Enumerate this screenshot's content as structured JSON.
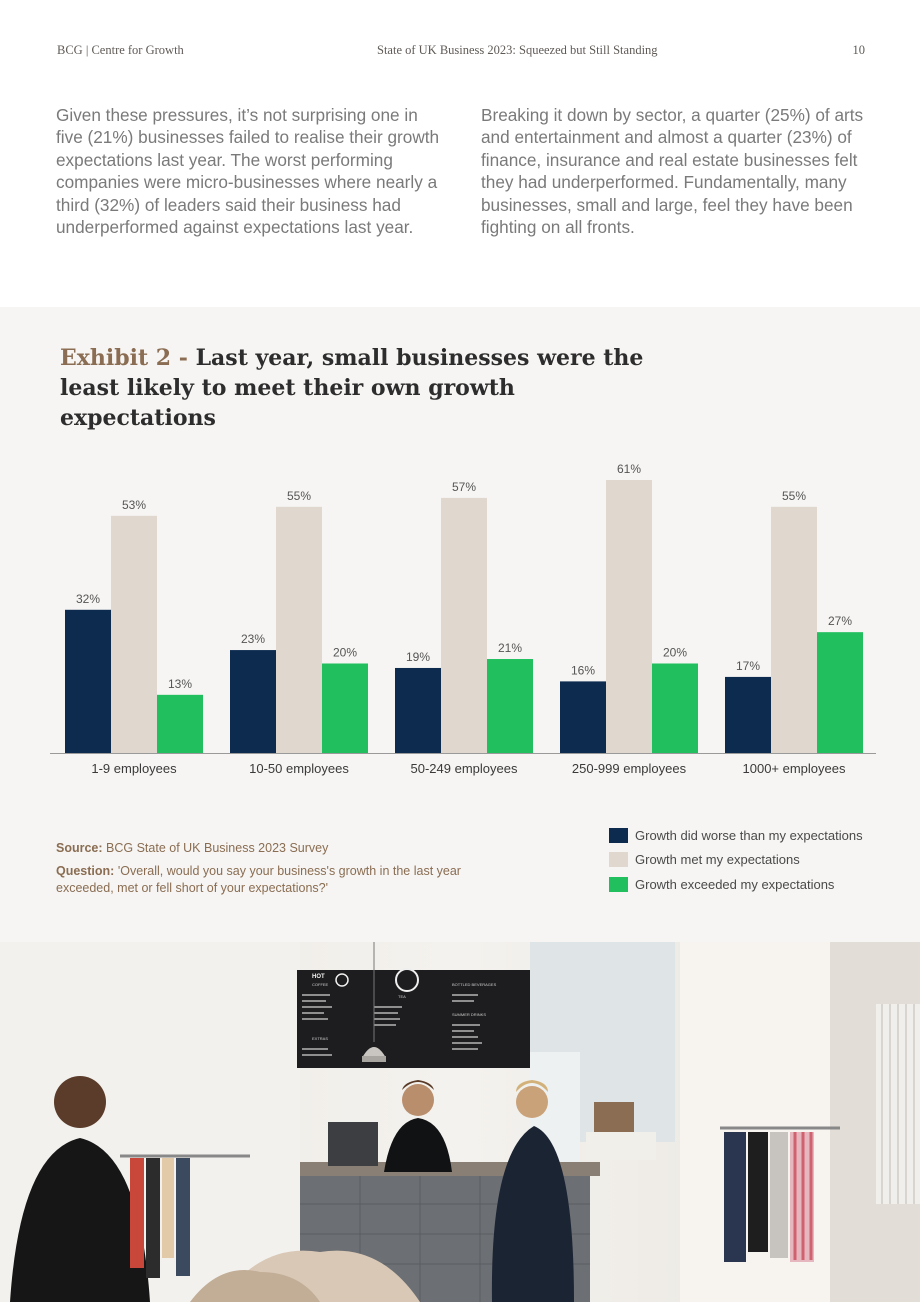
{
  "header": {
    "left": "BCG | Centre for Growth",
    "center": "State of UK Business 2023: Squeezed but Still Standing",
    "page": "10"
  },
  "intro": {
    "col1": "Given these pressures, it’s not surprising one in five (21%) businesses failed to realise their growth expectations last year. The worst performing companies were micro-businesses where nearly a third (32%) of leaders said their business had underperformed against expectations last year.",
    "col2": "Breaking it down by sector, a quarter (25%) of arts and entertainment and almost a quarter (23%) of finance, insurance and real estate businesses felt they had underperformed. Fundamentally, many businesses, small and large, feel they have been fighting on all fronts."
  },
  "exhibit": {
    "number": "Exhibit 2 -",
    "title": "Last year, small businesses were the least likely to meet their own growth expectations"
  },
  "source": {
    "source_label": "Source:",
    "source_text": "BCG State of UK Business 2023 Survey",
    "question_label": "Question:",
    "question_text": "'Overall, would you say your business's growth in the last year exceeded, met or fell short of your expectations?'"
  },
  "colors": {
    "worse": "#0d2b4f",
    "met": "#e0d7ce",
    "exceeded": "#22bf5f",
    "accent": "#8a6d52",
    "panel": "#f6f5f3"
  },
  "chart_data": {
    "type": "bar",
    "categories": [
      "1-9 employees",
      "10-50 employees",
      "50-249 employees",
      "250-999 employees",
      "1000+ employees"
    ],
    "series": [
      {
        "name": "Growth did worse than my expectations",
        "values": [
          32,
          23,
          19,
          16,
          17
        ],
        "color": "#0d2b4f"
      },
      {
        "name": "Growth met my expectations",
        "values": [
          53,
          55,
          57,
          61,
          55
        ],
        "color": "#e0d7ce"
      },
      {
        "name": "Growth exceeded my expectations",
        "values": [
          13,
          20,
          21,
          20,
          27
        ],
        "color": "#22bf5f"
      }
    ],
    "value_suffix": "%",
    "ylim": [
      0,
      61
    ],
    "grid": false,
    "legend": "bottom-right"
  },
  "photo": {
    "menu_labels": [
      "HOT",
      "COFFEE",
      "TEA",
      "BOTTLED BEVERAGES",
      "SUMMER DRINKS",
      "EXTRAS"
    ]
  }
}
